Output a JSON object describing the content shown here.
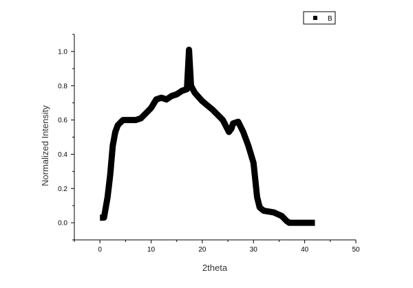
{
  "chart_data": {
    "type": "line",
    "title": "",
    "xlabel": "2theta",
    "ylabel": "Normalized Intensity",
    "xlim": [
      -5,
      50
    ],
    "ylim": [
      -0.1,
      1.1
    ],
    "xticks": [
      0,
      10,
      20,
      30,
      40,
      50
    ],
    "xtick_labels": [
      "0",
      "10",
      "20",
      "30",
      "40",
      "50"
    ],
    "yticks": [
      0.0,
      0.2,
      0.4,
      0.6,
      0.8,
      1.0
    ],
    "ytick_labels": [
      "0.0",
      "0.2",
      "0.4",
      "0.6",
      "0.8",
      "1.0"
    ],
    "grid": false,
    "legend_position": "top-right",
    "series": [
      {
        "name": "B",
        "color": "#000000",
        "x": [
          0,
          0.8,
          1.5,
          2,
          2.5,
          3,
          3.5,
          4.5,
          6,
          7,
          8,
          9,
          10,
          11,
          12,
          13,
          14,
          15,
          16,
          17,
          17.4,
          17.8,
          18.5,
          20,
          22,
          24,
          25.2,
          25.7,
          26,
          27,
          28,
          29,
          30,
          30.7,
          31.2,
          32,
          34,
          35.5,
          36.5,
          37,
          42
        ],
        "y": [
          0.03,
          0.03,
          0.15,
          0.28,
          0.45,
          0.53,
          0.57,
          0.6,
          0.6,
          0.6,
          0.61,
          0.64,
          0.67,
          0.72,
          0.73,
          0.72,
          0.74,
          0.75,
          0.77,
          0.78,
          1.01,
          0.8,
          0.76,
          0.71,
          0.66,
          0.6,
          0.53,
          0.55,
          0.58,
          0.59,
          0.53,
          0.45,
          0.35,
          0.15,
          0.09,
          0.07,
          0.06,
          0.04,
          0.01,
          0,
          0
        ]
      }
    ]
  }
}
